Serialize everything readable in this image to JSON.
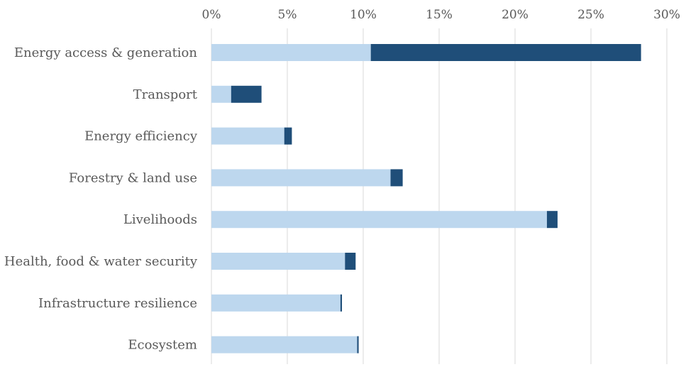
{
  "chart_data": {
    "type": "bar",
    "orientation": "horizontal",
    "stacked": true,
    "title": "",
    "xlabel": "",
    "ylabel": "",
    "xlim": [
      0,
      30
    ],
    "x_ticks": [
      0,
      5,
      10,
      15,
      20,
      25,
      30
    ],
    "x_tick_labels": [
      "0%",
      "5%",
      "10%",
      "15%",
      "20%",
      "25%",
      "30%"
    ],
    "x_axis_position": "top",
    "grid": "vertical",
    "legend": "none",
    "categories": [
      "Energy access & generation",
      "Transport",
      "Energy efficiency",
      "Forestry & land use",
      "Livelihoods",
      "Health, food & water security",
      "Infrastructure resilience",
      "Ecosystem"
    ],
    "series": [
      {
        "color": "#bdd7ee",
        "values": [
          10.5,
          1.3,
          4.8,
          11.8,
          22.1,
          8.8,
          8.5,
          9.6
        ]
      },
      {
        "color": "#1f4e79",
        "values": [
          17.8,
          2.0,
          0.5,
          0.8,
          0.7,
          0.7,
          0.1,
          0.1
        ]
      }
    ]
  }
}
